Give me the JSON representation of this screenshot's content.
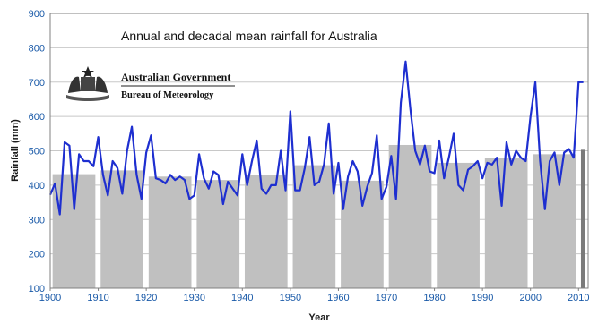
{
  "chart_data": {
    "type": "bar+line",
    "title": "Annual and decadal mean rainfall for Australia",
    "xlabel": "Year",
    "ylabel": "Rainfall (mm)",
    "xlim": [
      1900,
      2012
    ],
    "ylim": [
      100,
      900
    ],
    "x_ticks": [
      1900,
      1910,
      1920,
      1930,
      1940,
      1950,
      1960,
      1970,
      1980,
      1990,
      2000,
      2010
    ],
    "y_ticks": [
      100,
      200,
      300,
      400,
      500,
      600,
      700,
      800,
      900
    ],
    "grid": true,
    "decadal_bars": [
      {
        "decade": "1900-1909",
        "start": 1900,
        "end": 1909,
        "value": 432
      },
      {
        "decade": "1910-1919",
        "start": 1910,
        "end": 1919,
        "value": 443
      },
      {
        "decade": "1920-1929",
        "start": 1920,
        "end": 1929,
        "value": 425
      },
      {
        "decade": "1930-1939",
        "start": 1930,
        "end": 1939,
        "value": 415
      },
      {
        "decade": "1940-1949",
        "start": 1940,
        "end": 1949,
        "value": 430
      },
      {
        "decade": "1950-1959",
        "start": 1950,
        "end": 1959,
        "value": 458
      },
      {
        "decade": "1960-1969",
        "start": 1960,
        "end": 1969,
        "value": 413
      },
      {
        "decade": "1970-1979",
        "start": 1970,
        "end": 1979,
        "value": 517
      },
      {
        "decade": "1980-1989",
        "start": 1980,
        "end": 1989,
        "value": 465
      },
      {
        "decade": "1990-1999",
        "start": 1990,
        "end": 1999,
        "value": 478
      },
      {
        "decade": "2000-2009",
        "start": 2000,
        "end": 2009,
        "value": 490
      },
      {
        "decade": "2010",
        "start": 2010,
        "end": 2011,
        "value": 503
      }
    ],
    "annual": {
      "x": [
        1900,
        1901,
        1902,
        1903,
        1904,
        1905,
        1906,
        1907,
        1908,
        1909,
        1910,
        1911,
        1912,
        1913,
        1914,
        1915,
        1916,
        1917,
        1918,
        1919,
        1920,
        1921,
        1922,
        1923,
        1924,
        1925,
        1926,
        1927,
        1928,
        1929,
        1930,
        1931,
        1932,
        1933,
        1934,
        1935,
        1936,
        1937,
        1938,
        1939,
        1940,
        1941,
        1942,
        1943,
        1944,
        1945,
        1946,
        1947,
        1948,
        1949,
        1950,
        1951,
        1952,
        1953,
        1954,
        1955,
        1956,
        1957,
        1958,
        1959,
        1960,
        1961,
        1962,
        1963,
        1964,
        1965,
        1966,
        1967,
        1968,
        1969,
        1970,
        1971,
        1972,
        1973,
        1974,
        1975,
        1976,
        1977,
        1978,
        1979,
        1980,
        1981,
        1982,
        1983,
        1984,
        1985,
        1986,
        1987,
        1988,
        1989,
        1990,
        1991,
        1992,
        1993,
        1994,
        1995,
        1996,
        1997,
        1998,
        1999,
        2000,
        2001,
        2002,
        2003,
        2004,
        2005,
        2006,
        2007,
        2008,
        2009,
        2010,
        2011
      ],
      "y": [
        372,
        405,
        315,
        525,
        515,
        330,
        490,
        470,
        470,
        455,
        540,
        430,
        370,
        470,
        450,
        375,
        500,
        570,
        430,
        360,
        495,
        545,
        420,
        415,
        405,
        430,
        415,
        425,
        415,
        360,
        370,
        490,
        420,
        390,
        440,
        430,
        345,
        410,
        390,
        370,
        490,
        400,
        470,
        530,
        390,
        375,
        400,
        400,
        500,
        385,
        615,
        385,
        385,
        450,
        540,
        400,
        410,
        460,
        580,
        375,
        465,
        330,
        425,
        470,
        440,
        340,
        395,
        435,
        545,
        360,
        395,
        485,
        360,
        640,
        760,
        620,
        500,
        460,
        515,
        440,
        435,
        530,
        420,
        480,
        550,
        400,
        385,
        445,
        455,
        470,
        420,
        465,
        460,
        480,
        340,
        525,
        460,
        500,
        480,
        470,
        600,
        700,
        470,
        330,
        470,
        495,
        400,
        495,
        505,
        480,
        700,
        700
      ]
    },
    "colors": {
      "bars": "#c0c0c0",
      "current_decade_bar": "#7a7a7a",
      "line": "#1e2fd0",
      "axis_text": "#1a5aa8",
      "grid": "#c8c8c8"
    }
  },
  "branding": {
    "line1": "Australian Government",
    "line2": "Bureau of Meteorology"
  }
}
